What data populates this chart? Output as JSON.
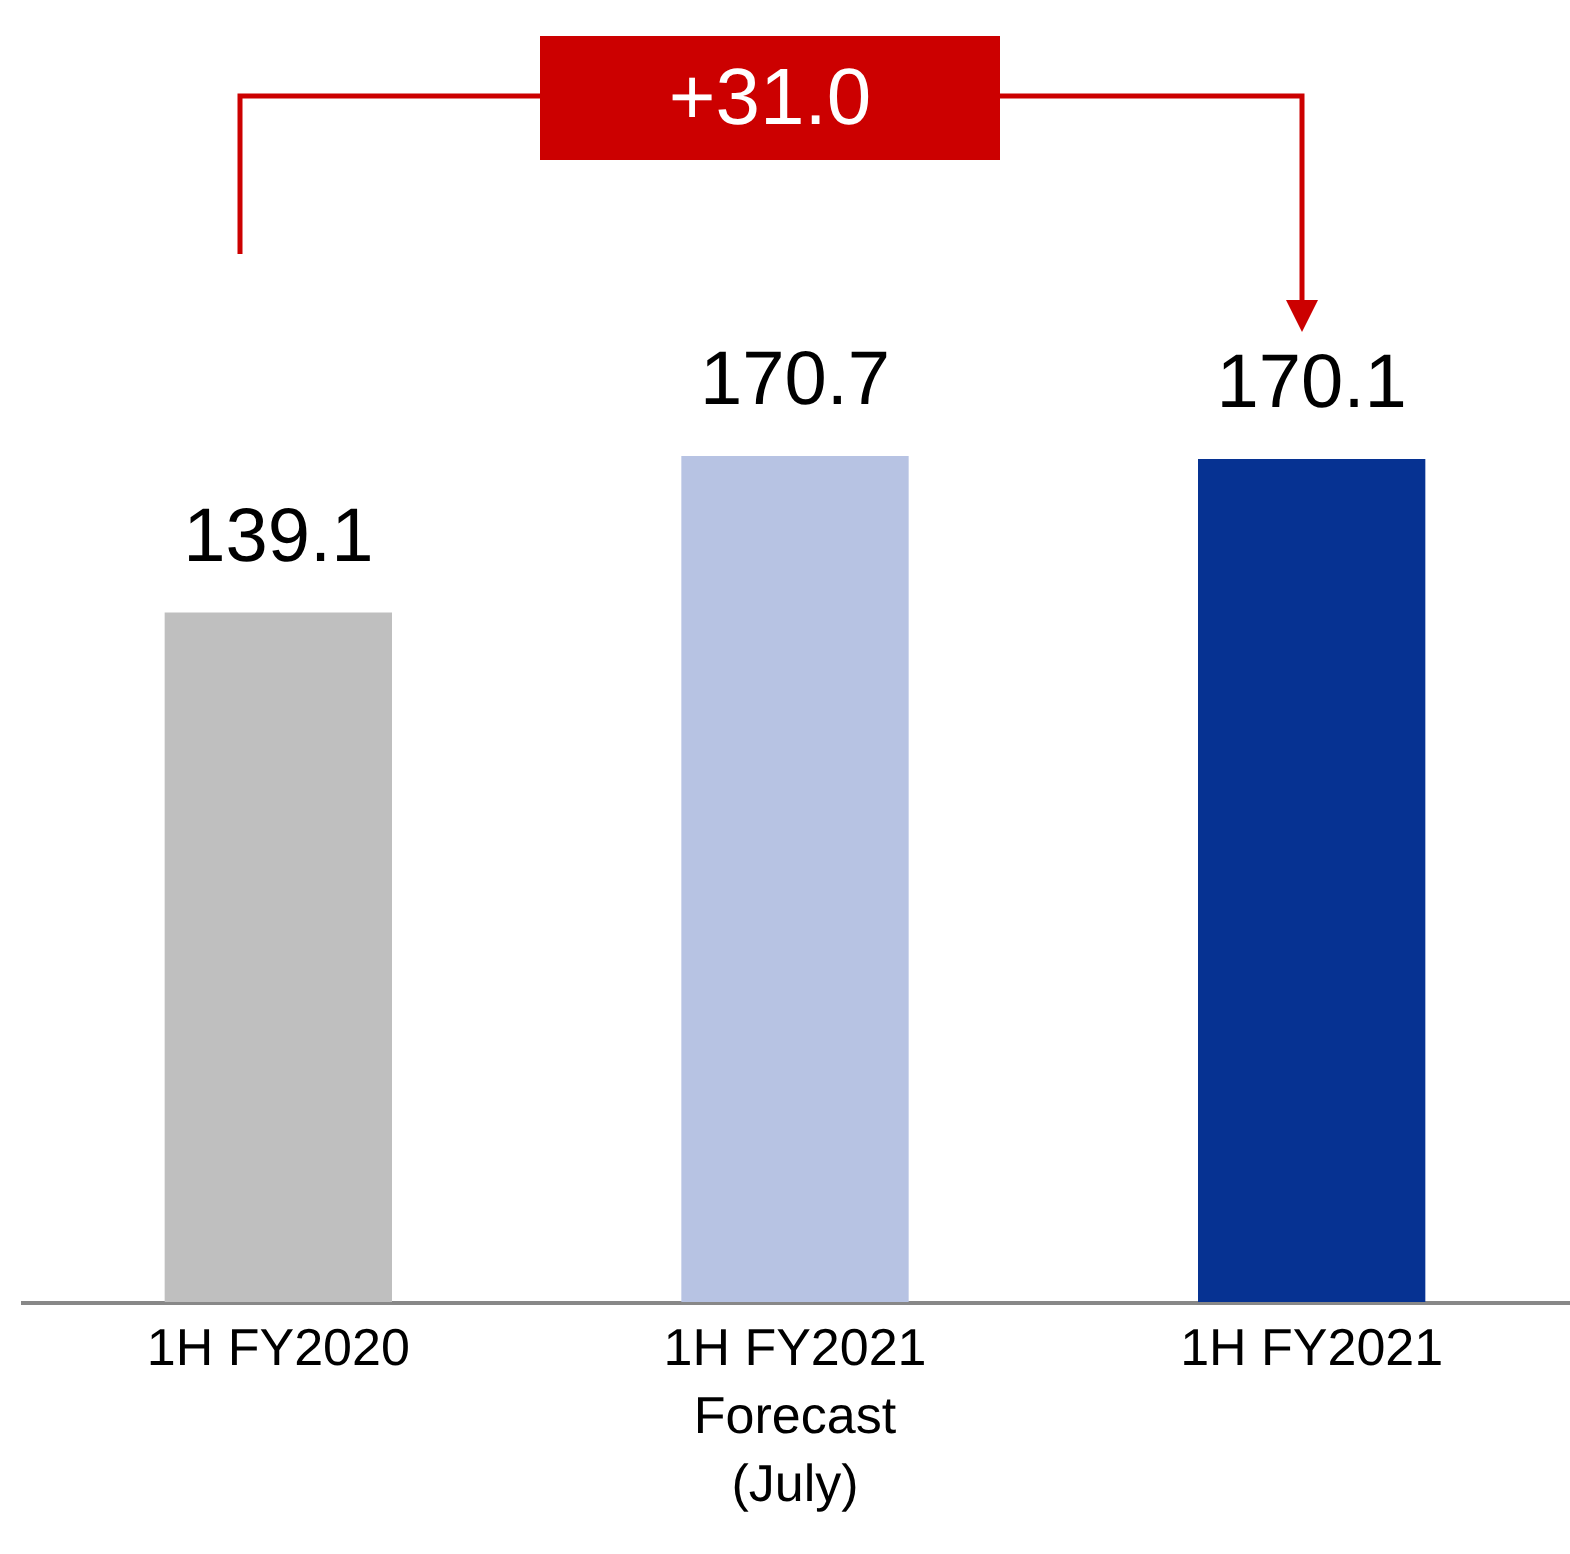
{
  "chart_data": {
    "type": "bar",
    "categories": [
      "1H FY2020",
      "1H FY2021\nForecast\n(July)",
      "1H FY2021"
    ],
    "values": [
      139.1,
      170.7,
      170.1
    ],
    "colors": [
      "#bfbfbf",
      "#b7c3e3",
      "#063292"
    ],
    "data_labels": true,
    "annotations": [
      "+31.0"
    ]
  }
}
